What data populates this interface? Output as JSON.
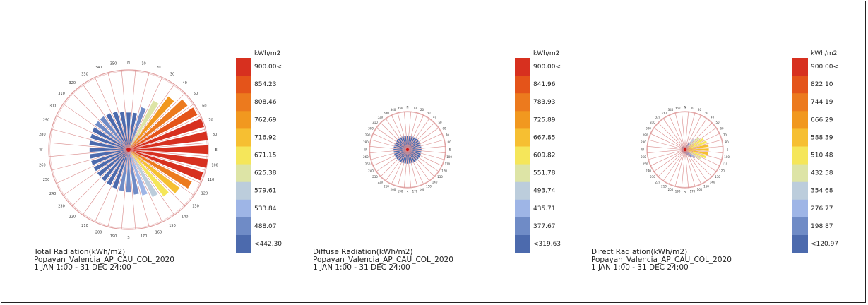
{
  "roses": [
    {
      "title": "Total Radiation(kWh/m2)",
      "location": "Popayan_Valencia_AP_CAU_COL_2020",
      "period": "1 JAN 1:00 - 31 DEC 24:00",
      "legend_unit": "kWh/m2",
      "legend_labels": [
        "900.00<",
        "854.23",
        "808.46",
        "762.69",
        "716.92",
        "671.15",
        "625.38",
        "579.61",
        "533.84",
        "488.07",
        "<442.30"
      ]
    },
    {
      "title": "Diffuse Radiation(kWh/m2)",
      "location": "Popayan_Valencia_AP_CAU_COL_2020",
      "period": "1 JAN 1:00 - 31 DEC 24:00",
      "legend_unit": "kWh/m2",
      "legend_labels": [
        "900.00<",
        "841.96",
        "783.93",
        "725.89",
        "667.85",
        "609.82",
        "551.78",
        "493.74",
        "435.71",
        "377.67",
        "<319.63"
      ]
    },
    {
      "title": "Direct Radiation(kWh/m2)",
      "location": "Popayan_Valencia_AP_CAU_COL_2020",
      "period": "1 JAN 1:00 - 31 DEC 24:00",
      "legend_unit": "kWh/m2",
      "legend_labels": [
        "900.00<",
        "822.10",
        "744.19",
        "666.29",
        "588.39",
        "510.48",
        "432.58",
        "354.68",
        "276.77",
        "198.87",
        "<120.97"
      ]
    }
  ],
  "legend_colors": [
    "#d7301f",
    "#e4541a",
    "#ec7a1e",
    "#f1981f",
    "#f6bf32",
    "#f5e65a",
    "#dde4a6",
    "#bccddc",
    "#9eb5e6",
    "#6f8bc6",
    "#4c6aad"
  ],
  "chart_data": [
    {
      "type": "radial-bar",
      "title": "Total Radiation(kWh/m2)",
      "direction_labels": [
        "N",
        "10",
        "20",
        "30",
        "40",
        "50",
        "60",
        "70",
        "80",
        "E",
        "100",
        "110",
        "120",
        "130",
        "140",
        "150",
        "160",
        "170",
        "S",
        "190",
        "200",
        "210",
        "220",
        "230",
        "240",
        "250",
        "260",
        "W",
        "280",
        "290",
        "300",
        "310",
        "320",
        "330",
        "340",
        "350"
      ],
      "directions_deg": [
        0,
        10,
        20,
        30,
        40,
        50,
        60,
        70,
        80,
        90,
        100,
        110,
        120,
        130,
        140,
        150,
        160,
        170,
        180,
        190,
        200,
        210,
        220,
        230,
        240,
        250,
        260,
        270,
        280,
        290,
        300,
        310,
        320,
        330,
        340,
        350
      ],
      "values": [
        420,
        420,
        500,
        620,
        750,
        830,
        870,
        890,
        900,
        900,
        900,
        880,
        800,
        720,
        660,
        600,
        540,
        510,
        480,
        470,
        460,
        450,
        445,
        440,
        440,
        440,
        440,
        440,
        445,
        450,
        460,
        470,
        470,
        460,
        450,
        430
      ],
      "scale_max": 900
    },
    {
      "type": "radial-bar",
      "title": "Diffuse Radiation(kWh/m2)",
      "direction_labels": [
        "N",
        "10",
        "20",
        "30",
        "40",
        "50",
        "60",
        "70",
        "80",
        "E",
        "100",
        "110",
        "120",
        "130",
        "140",
        "150",
        "160",
        "170",
        "S",
        "190",
        "200",
        "210",
        "220",
        "230",
        "240",
        "250",
        "260",
        "W",
        "280",
        "290",
        "300",
        "310",
        "320",
        "330",
        "340",
        "350"
      ],
      "directions_deg": [
        0,
        10,
        20,
        30,
        40,
        50,
        60,
        70,
        80,
        90,
        100,
        110,
        120,
        130,
        140,
        150,
        160,
        170,
        180,
        190,
        200,
        210,
        220,
        230,
        240,
        250,
        260,
        270,
        280,
        290,
        300,
        310,
        320,
        330,
        340,
        350
      ],
      "values": [
        330,
        330,
        330,
        330,
        330,
        330,
        330,
        330,
        330,
        330,
        330,
        330,
        330,
        330,
        330,
        330,
        330,
        330,
        330,
        330,
        330,
        330,
        330,
        330,
        330,
        330,
        330,
        330,
        330,
        330,
        330,
        330,
        330,
        330,
        330,
        330
      ],
      "scale_max": 900
    },
    {
      "type": "radial-bar",
      "title": "Direct Radiation(kWh/m2)",
      "direction_labels": [
        "N",
        "10",
        "20",
        "30",
        "40",
        "50",
        "60",
        "70",
        "80",
        "E",
        "100",
        "110",
        "120",
        "130",
        "140",
        "150",
        "160",
        "170",
        "S",
        "190",
        "200",
        "210",
        "220",
        "230",
        "240",
        "250",
        "260",
        "W",
        "280",
        "290",
        "300",
        "310",
        "320",
        "330",
        "340",
        "350"
      ],
      "directions_deg": [
        0,
        10,
        20,
        30,
        40,
        50,
        60,
        70,
        80,
        90,
        100,
        110,
        120,
        130,
        140,
        150,
        160,
        170,
        180,
        190,
        200,
        210,
        220,
        230,
        240,
        250,
        260,
        270,
        280,
        290,
        300,
        310,
        320,
        330,
        340,
        350
      ],
      "values": [
        60,
        70,
        110,
        200,
        330,
        430,
        500,
        540,
        560,
        560,
        550,
        520,
        420,
        300,
        220,
        160,
        120,
        100,
        90,
        90,
        90,
        90,
        90,
        90,
        90,
        90,
        90,
        90,
        90,
        90,
        90,
        90,
        90,
        90,
        80,
        70
      ],
      "scale_max": 900
    }
  ]
}
